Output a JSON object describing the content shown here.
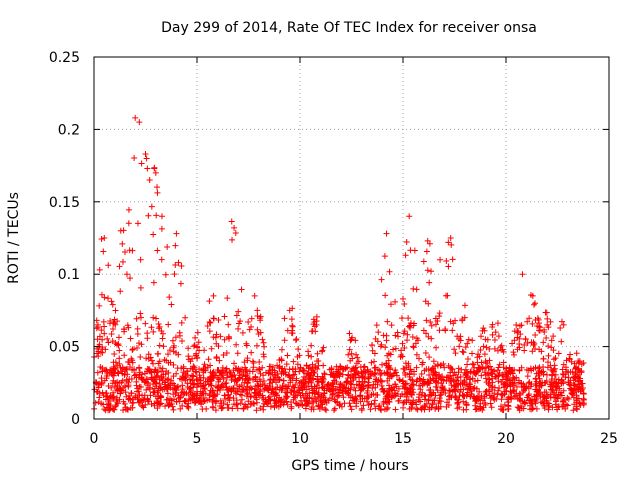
{
  "chart_data": {
    "type": "scatter",
    "title": "Day 299 of 2014, Rate Of TEC Index for receiver onsa",
    "xlabel": "GPS time / hours",
    "ylabel": "ROTI / TECUs",
    "xlim": [
      0,
      25
    ],
    "ylim": [
      0,
      0.25
    ],
    "x_ticks": [
      "0",
      "5",
      "10",
      "15",
      "20",
      "25"
    ],
    "y_ticks": [
      "0",
      "0.05",
      "0.1",
      "0.15",
      "0.2",
      "0.25"
    ],
    "grid": true,
    "marker": "+",
    "series": [
      {
        "name": "ROTI",
        "color": "#ff0000",
        "x_range": [
          0,
          23.8
        ],
        "baseline_typical": 0.018,
        "peaks": [
          {
            "x": 0.2,
            "y": 0.05
          },
          {
            "x": 0.5,
            "y": 0.125
          },
          {
            "x": 1.3,
            "y": 0.13
          },
          {
            "x": 1.6,
            "y": 0.1
          },
          {
            "x": 2.0,
            "y": 0.208
          },
          {
            "x": 2.2,
            "y": 0.205
          },
          {
            "x": 2.5,
            "y": 0.183
          },
          {
            "x": 3.0,
            "y": 0.17
          },
          {
            "x": 3.3,
            "y": 0.14
          },
          {
            "x": 4.0,
            "y": 0.128
          },
          {
            "x": 5.0,
            "y": 0.05
          },
          {
            "x": 5.8,
            "y": 0.085
          },
          {
            "x": 6.8,
            "y": 0.132
          },
          {
            "x": 7.8,
            "y": 0.085
          },
          {
            "x": 9.5,
            "y": 0.075
          },
          {
            "x": 10.8,
            "y": 0.065
          },
          {
            "x": 12.5,
            "y": 0.055
          },
          {
            "x": 13.8,
            "y": 0.06
          },
          {
            "x": 14.2,
            "y": 0.128
          },
          {
            "x": 15.0,
            "y": 0.083
          },
          {
            "x": 15.3,
            "y": 0.14
          },
          {
            "x": 16.2,
            "y": 0.123
          },
          {
            "x": 16.8,
            "y": 0.11
          },
          {
            "x": 17.2,
            "y": 0.122
          },
          {
            "x": 18.0,
            "y": 0.07
          },
          {
            "x": 19.0,
            "y": 0.055
          },
          {
            "x": 19.5,
            "y": 0.06
          },
          {
            "x": 20.8,
            "y": 0.1
          },
          {
            "x": 21.3,
            "y": 0.085
          },
          {
            "x": 22.0,
            "y": 0.065
          },
          {
            "x": 22.8,
            "y": 0.065
          },
          {
            "x": 23.5,
            "y": 0.04
          }
        ]
      }
    ]
  }
}
